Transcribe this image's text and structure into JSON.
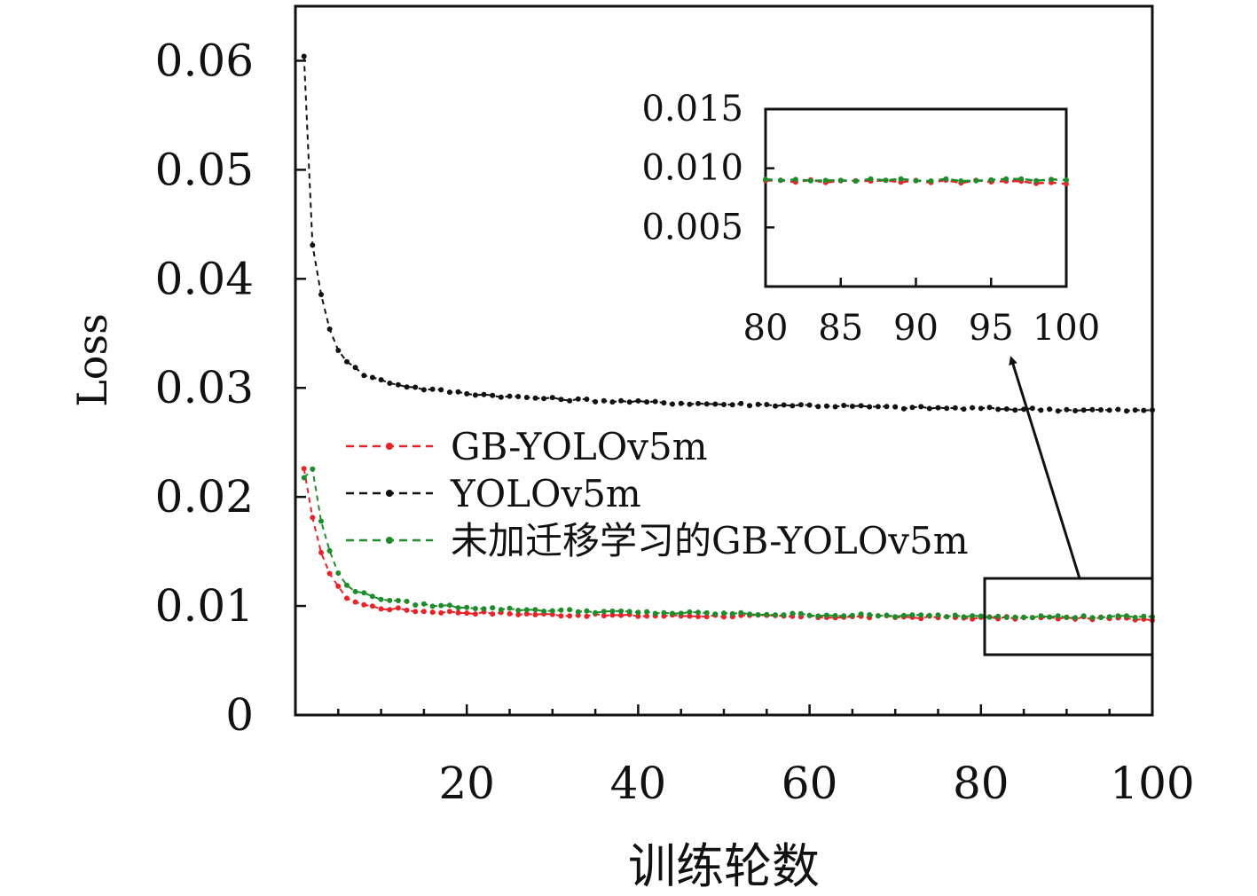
{
  "chart_data": {
    "type": "line",
    "xlabel": "训练轮数",
    "ylabel": "Loss",
    "xlim": [
      0,
      100
    ],
    "ylim": [
      0,
      0.065
    ],
    "xticks": [
      20,
      40,
      60,
      80,
      100
    ],
    "xticks_minor_step": 5,
    "yticks": [
      0,
      0.01,
      0.02,
      0.03,
      0.04,
      0.05,
      0.06
    ],
    "ytick_labels": [
      "0",
      "0.01",
      "0.02",
      "0.03",
      "0.04",
      "0.05",
      "0.06"
    ],
    "grid": false,
    "legend_position": "center-left",
    "series": [
      {
        "name": "GB-YOLOv5m",
        "color": "#e8242a",
        "line_style": "dashed",
        "x": [
          1,
          2,
          3,
          4,
          5,
          6,
          7,
          8,
          10,
          12,
          15,
          20,
          25,
          30,
          40,
          50,
          60,
          70,
          80,
          90,
          100
        ],
        "y": [
          0.0225,
          0.018,
          0.015,
          0.013,
          0.0117,
          0.0108,
          0.0104,
          0.0101,
          0.0098,
          0.0097,
          0.0095,
          0.0094,
          0.0093,
          0.0092,
          0.0091,
          0.0091,
          0.009,
          0.009,
          0.0089,
          0.0089,
          0.0088
        ]
      },
      {
        "name": "YOLOv5m",
        "color": "#111111",
        "line_style": "dashed",
        "x": [
          1,
          2,
          3,
          4,
          5,
          6,
          7,
          8,
          10,
          12,
          15,
          20,
          25,
          30,
          40,
          50,
          60,
          70,
          80,
          90,
          100
        ],
        "y": [
          0.0605,
          0.043,
          0.0385,
          0.0355,
          0.0335,
          0.0325,
          0.0318,
          0.0312,
          0.0307,
          0.0303,
          0.0299,
          0.0295,
          0.0292,
          0.029,
          0.0287,
          0.0285,
          0.0284,
          0.0282,
          0.0281,
          0.028,
          0.0279
        ]
      },
      {
        "name": "未加迁移学习的GB-YOLOv5m",
        "color": "#1e8c2a",
        "line_style": "dashed",
        "x": [
          1,
          2,
          3,
          4,
          5,
          6,
          7,
          8,
          10,
          12,
          15,
          20,
          25,
          30,
          40,
          50,
          60,
          70,
          80,
          90,
          100
        ],
        "y": [
          0.0218,
          0.0225,
          0.0178,
          0.015,
          0.013,
          0.012,
          0.0114,
          0.0111,
          0.0107,
          0.0104,
          0.0101,
          0.0099,
          0.0097,
          0.0096,
          0.0094,
          0.0093,
          0.0092,
          0.0091,
          0.0091,
          0.009,
          0.009
        ]
      }
    ],
    "inset": {
      "xlim": [
        80,
        100
      ],
      "ylim": [
        0,
        0.015
      ],
      "xticks": [
        80,
        85,
        90,
        95,
        100
      ],
      "yticks": [
        0.005,
        0.01,
        0.015
      ],
      "ytick_labels": [
        "0.005",
        "0.010",
        "0.015"
      ],
      "source_region": {
        "x": [
          80,
          100
        ],
        "y": [
          0.0055,
          0.0125
        ]
      }
    }
  }
}
